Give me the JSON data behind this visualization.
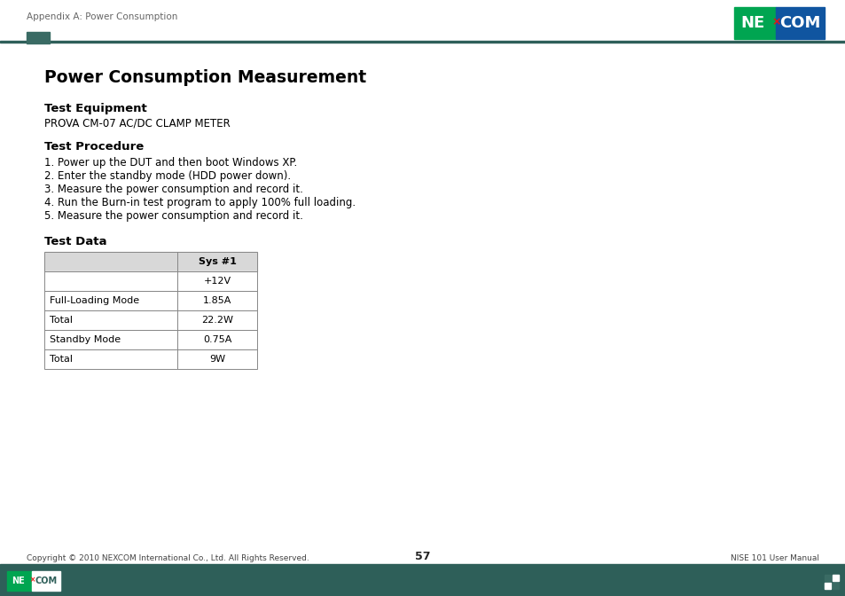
{
  "page_header_text": "Appendix A: Power Consumption",
  "title": "Power Consumption Measurement",
  "section1_header": "Test Equipment",
  "section1_body": "PROVA CM-07 AC/DC CLAMP METER",
  "section2_header": "Test Procedure",
  "section2_items": [
    "1. Power up the DUT and then boot Windows XP.",
    "2. Enter the standby mode (HDD power down).",
    "3. Measure the power consumption and record it.",
    "4. Run the Burn-in test program to apply 100% full loading.",
    "5. Measure the power consumption and record it."
  ],
  "section3_header": "Test Data",
  "table_rows_all": [
    [
      "",
      "Sys #1"
    ],
    [
      "",
      "+12V"
    ],
    [
      "Full-Loading Mode",
      "1.85A"
    ],
    [
      "Total",
      "22.2W"
    ],
    [
      "Standby Mode",
      "0.75A"
    ],
    [
      "Total",
      "9W"
    ]
  ],
  "footer_copyright": "Copyright © 2010 NEXCOM International Co., Ltd. All Rights Reserved.",
  "footer_page": "57",
  "footer_manual": "NISE 101 User Manual",
  "header_bar_color": "#2e5f59",
  "footer_bar_color": "#2e5f59",
  "nexcom_green": "#00a551",
  "nexcom_blue": "#1055a0",
  "bg_color": "#ffffff",
  "text_color": "#000000",
  "header_text_color": "#666666",
  "table_border_color": "#888888",
  "table_header_bg": "#d8d8d8",
  "accent_rect_color": "#3a6b64"
}
